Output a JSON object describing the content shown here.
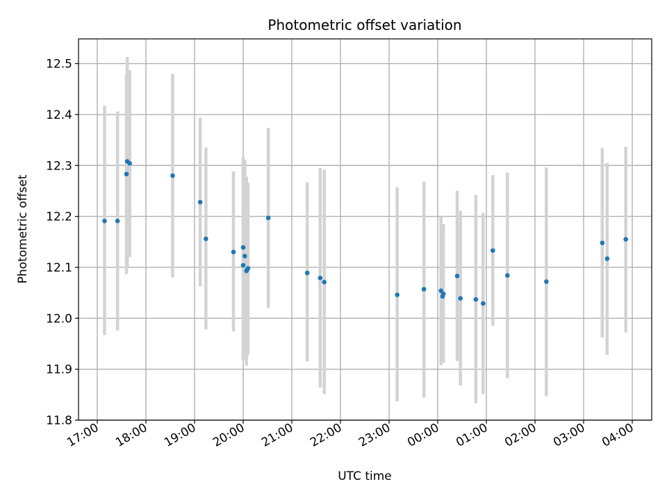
{
  "chart_data": {
    "type": "scatter",
    "title": "Photometric offset variation",
    "xlabel": "UTC time",
    "ylabel": "Photometric offset",
    "x_axis_type": "time",
    "xlim": [
      "16:40",
      "04:25 (+1 day)"
    ],
    "ylim": [
      11.8,
      12.545
    ],
    "grid": true,
    "x_ticks": [
      "17:00",
      "18:00",
      "19:00",
      "20:00",
      "21:00",
      "22:00",
      "23:00",
      "00:00",
      "01:00",
      "02:00",
      "03:00",
      "04:00"
    ],
    "y_ticks": [
      "11.8",
      "11.9",
      "12.0",
      "12.1",
      "12.2",
      "12.3",
      "12.4",
      "12.5"
    ],
    "point_color": "#1f77b4",
    "errorbar_color": "#d3d3d3",
    "points": [
      {
        "t": "17:09",
        "y": 12.191,
        "lo": 11.967,
        "hi": 12.417
      },
      {
        "t": "17:25",
        "y": 12.191,
        "lo": 11.976,
        "hi": 12.406
      },
      {
        "t": "17:36",
        "y": 12.283,
        "lo": 12.087,
        "hi": 12.478
      },
      {
        "t": "17:37",
        "y": 12.308,
        "lo": 12.101,
        "hi": 12.513
      },
      {
        "t": "17:40",
        "y": 12.304,
        "lo": 12.12,
        "hi": 12.487
      },
      {
        "t": "18:33",
        "y": 12.28,
        "lo": 12.08,
        "hi": 12.48
      },
      {
        "t": "19:07",
        "y": 12.228,
        "lo": 12.063,
        "hi": 12.394
      },
      {
        "t": "19:14",
        "y": 12.156,
        "lo": 11.978,
        "hi": 12.335
      },
      {
        "t": "19:48",
        "y": 12.13,
        "lo": 11.974,
        "hi": 12.288
      },
      {
        "t": "20:00",
        "y": 12.139,
        "lo": 11.919,
        "hi": 12.316
      },
      {
        "t": "20:00",
        "y": 12.104,
        "lo": 11.919,
        "hi": 12.316
      },
      {
        "t": "20:02",
        "y": 12.122,
        "lo": 11.936,
        "hi": 12.311
      },
      {
        "t": "20:04",
        "y": 12.093,
        "lo": 11.907,
        "hi": 12.278
      },
      {
        "t": "20:05",
        "y": 12.096,
        "lo": 11.926,
        "hi": 12.266
      },
      {
        "t": "20:06",
        "y": 12.098,
        "lo": 11.93,
        "hi": 12.266
      },
      {
        "t": "20:31",
        "y": 12.197,
        "lo": 12.02,
        "hi": 12.374
      },
      {
        "t": "21:19",
        "y": 12.089,
        "lo": 11.915,
        "hi": 12.267
      },
      {
        "t": "21:35",
        "y": 12.079,
        "lo": 11.864,
        "hi": 12.295
      },
      {
        "t": "21:40",
        "y": 12.071,
        "lo": 11.851,
        "hi": 12.292
      },
      {
        "t": "23:10",
        "y": 12.046,
        "lo": 11.837,
        "hi": 12.257
      },
      {
        "t": "23:43",
        "y": 12.057,
        "lo": 11.844,
        "hi": 12.268
      },
      {
        "t": "00:04",
        "y": 12.054,
        "lo": 11.908,
        "hi": 12.2
      },
      {
        "t": "00:06",
        "y": 12.043,
        "lo": 11.913,
        "hi": 12.185
      },
      {
        "t": "00:07",
        "y": 12.048,
        "lo": 11.913,
        "hi": 12.185
      },
      {
        "t": "00:24",
        "y": 12.083,
        "lo": 11.916,
        "hi": 12.25
      },
      {
        "t": "00:28",
        "y": 12.039,
        "lo": 11.868,
        "hi": 12.211
      },
      {
        "t": "00:47",
        "y": 12.037,
        "lo": 11.833,
        "hi": 12.242
      },
      {
        "t": "00:56",
        "y": 12.029,
        "lo": 11.851,
        "hi": 12.207
      },
      {
        "t": "01:08",
        "y": 12.133,
        "lo": 11.985,
        "hi": 12.281
      },
      {
        "t": "01:26",
        "y": 12.084,
        "lo": 11.882,
        "hi": 12.286
      },
      {
        "t": "02:14",
        "y": 12.072,
        "lo": 11.847,
        "hi": 12.296
      },
      {
        "t": "03:23",
        "y": 12.148,
        "lo": 11.962,
        "hi": 12.334
      },
      {
        "t": "03:29",
        "y": 12.117,
        "lo": 11.928,
        "hi": 12.305
      },
      {
        "t": "03:52",
        "y": 12.155,
        "lo": 11.972,
        "hi": 12.337
      }
    ]
  }
}
